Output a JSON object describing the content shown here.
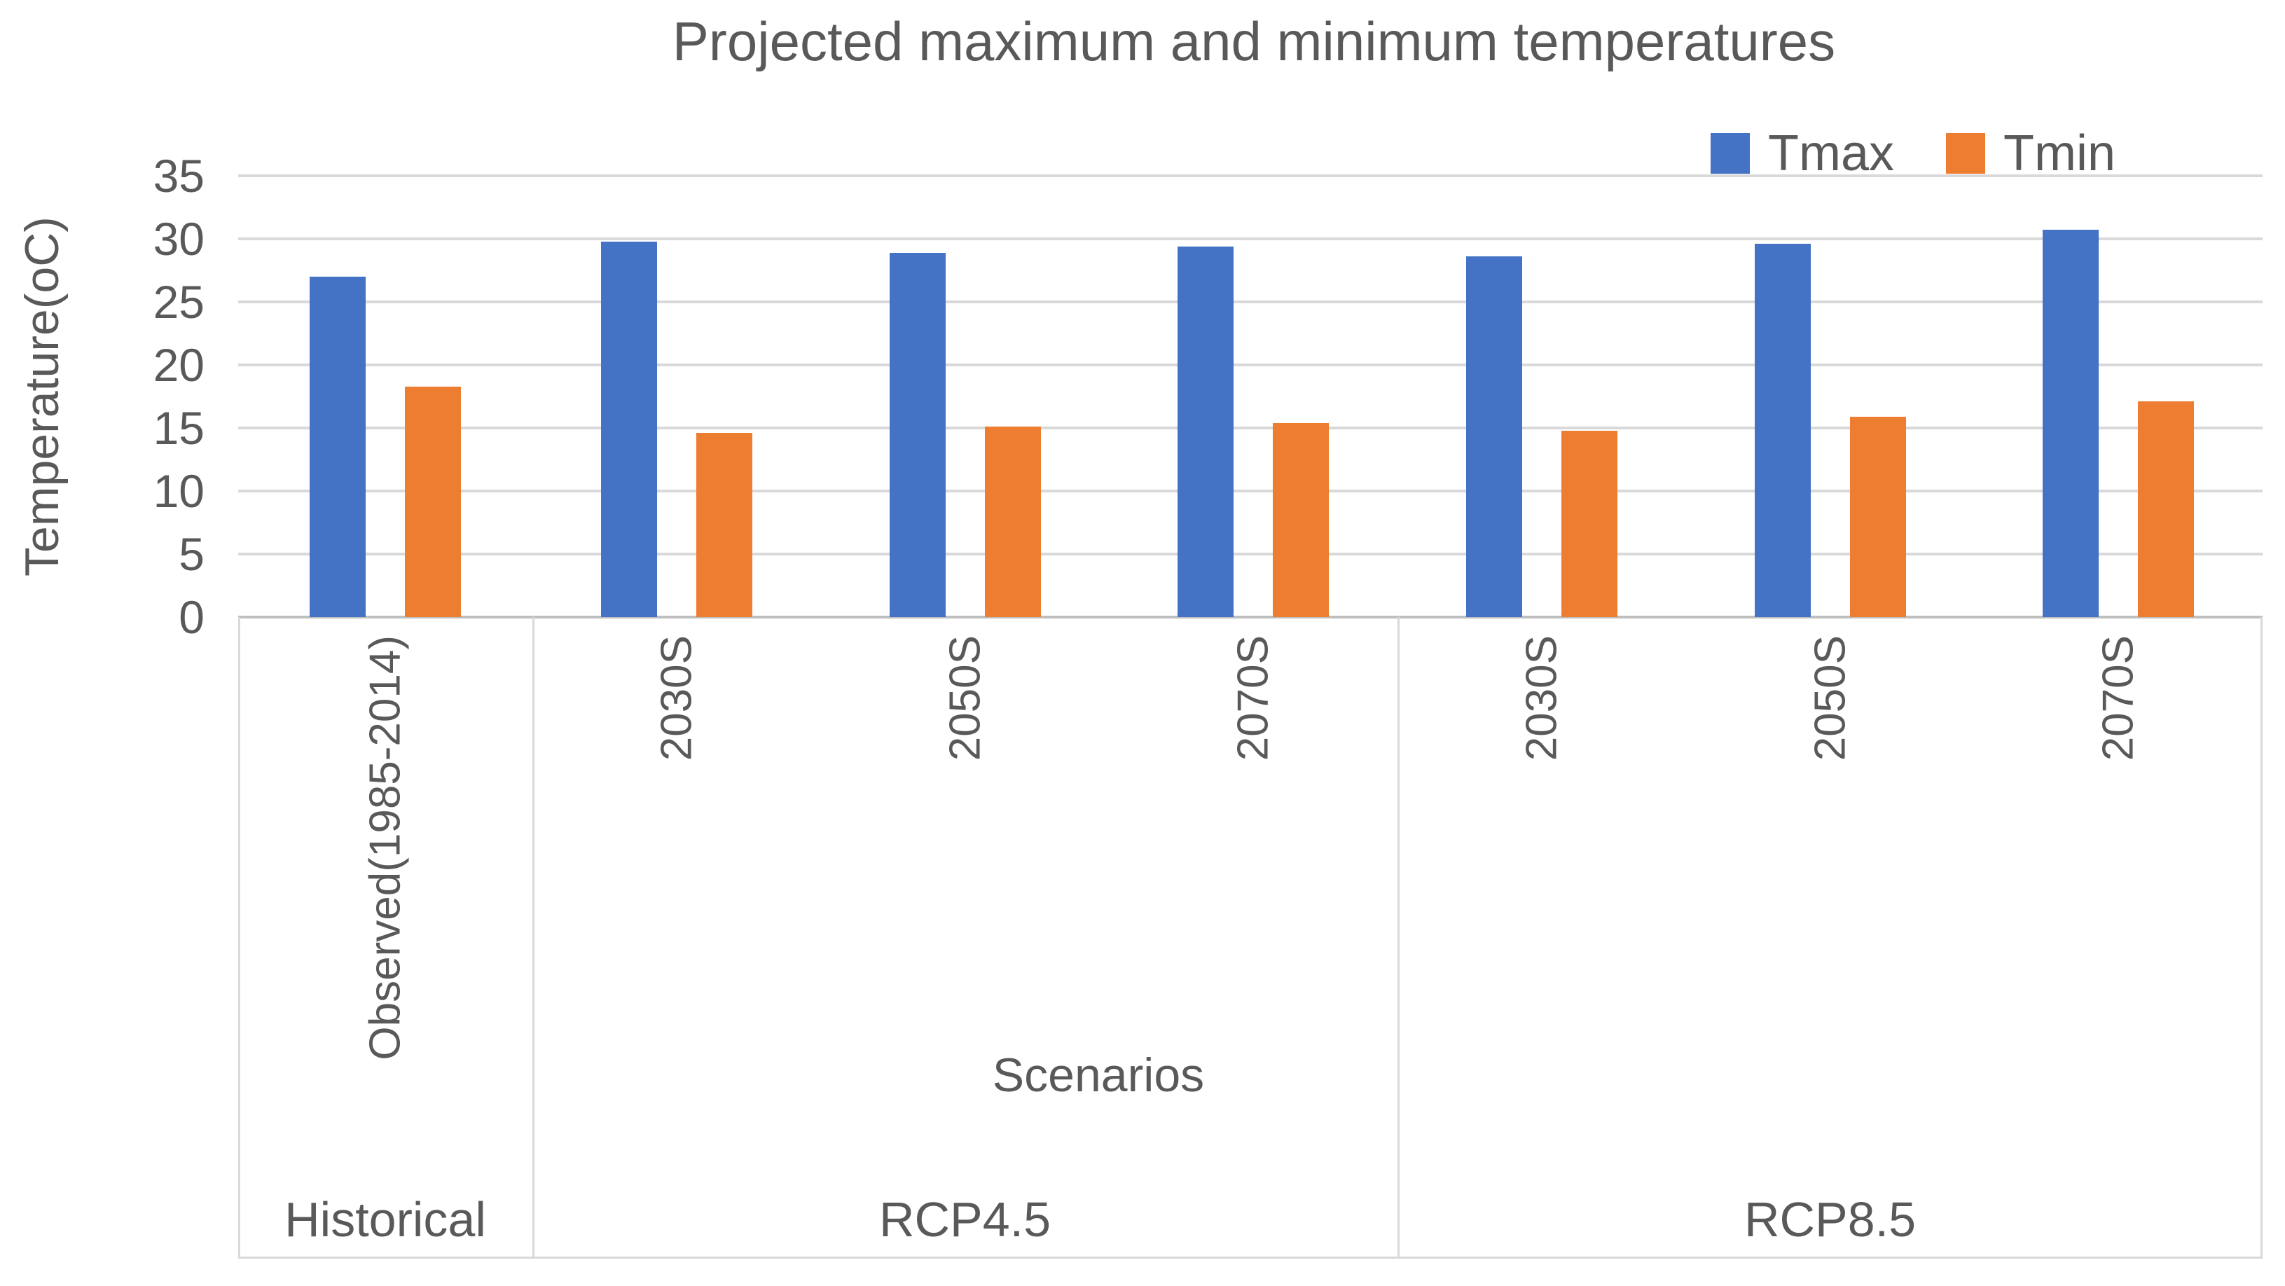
{
  "title": "Projected maximum and minimum temperatures",
  "legend": [
    {
      "label": "Tmax",
      "color": "#4472C4"
    },
    {
      "label": "Tmin",
      "color": "#ED7D31"
    }
  ],
  "y_axis": {
    "title": "Temperature(oC)",
    "ticks": [
      35,
      30,
      25,
      20,
      15,
      10,
      5,
      0
    ]
  },
  "x_axis": {
    "title": "Scenarios",
    "group_labels": [
      "Historical",
      "RCP4.5",
      "RCP8.5"
    ]
  },
  "colors": {
    "tmax": "#4472C4",
    "tmin": "#ED7D31",
    "grid": "#D9D9D9",
    "axis": "#BFBFBF",
    "text": "#595959"
  },
  "chart_data": {
    "type": "bar",
    "title": "Projected maximum and minimum temperatures",
    "xlabel": "Scenarios",
    "ylabel": "Temperature(oC)",
    "ylim": [
      0,
      35
    ],
    "ytick_step": 5,
    "grid": true,
    "legend_position": "top-right",
    "categories": [
      "Observed(1985-2014)",
      "2030S",
      "2050S",
      "2070S",
      "2030S",
      "2050S",
      "2070S"
    ],
    "sections": [
      {
        "label": "Historical",
        "group_count": 1
      },
      {
        "label": "RCP4.5",
        "group_count": 3
      },
      {
        "label": "RCP8.5",
        "group_count": 3
      }
    ],
    "series": [
      {
        "name": "Tmax",
        "color": "#4472C4",
        "values": [
          27.0,
          29.8,
          28.9,
          29.4,
          28.6,
          29.6,
          30.7
        ]
      },
      {
        "name": "Tmin",
        "color": "#ED7D31",
        "values": [
          18.3,
          14.6,
          15.1,
          15.4,
          14.8,
          15.9,
          17.1
        ]
      }
    ]
  }
}
